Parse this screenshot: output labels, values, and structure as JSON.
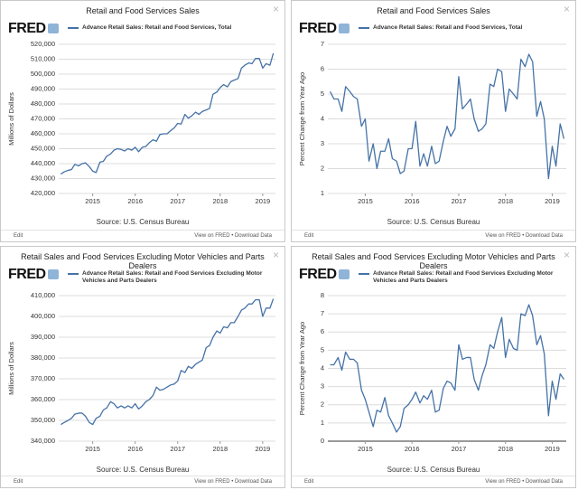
{
  "chart_data": [
    {
      "type": "line",
      "title": "Retail and Food Services Sales",
      "brand": "FRED",
      "close": "×",
      "x": [
        2014.25,
        2014.33,
        2014.42,
        2014.5,
        2014.58,
        2014.67,
        2014.75,
        2014.83,
        2014.92,
        2015.0,
        2015.08,
        2015.17,
        2015.25,
        2015.33,
        2015.42,
        2015.5,
        2015.58,
        2015.67,
        2015.75,
        2015.83,
        2015.92,
        2016.0,
        2016.08,
        2016.17,
        2016.25,
        2016.33,
        2016.42,
        2016.5,
        2016.58,
        2016.67,
        2016.75,
        2016.83,
        2016.92,
        2017.0,
        2017.08,
        2017.17,
        2017.25,
        2017.33,
        2017.42,
        2017.5,
        2017.58,
        2017.67,
        2017.75,
        2017.83,
        2017.92,
        2018.0,
        2018.08,
        2018.17,
        2018.25,
        2018.33,
        2018.42,
        2018.5,
        2018.58,
        2018.67,
        2018.75,
        2018.83,
        2018.92,
        2019.0,
        2019.08,
        2019.17,
        2019.25
      ],
      "series": [
        {
          "name": "Advance Retail Sales: Retail and Food Services, Total",
          "color": "#4572a7",
          "values": [
            433000,
            434500,
            435500,
            436000,
            439500,
            438500,
            440000,
            440500,
            438000,
            435000,
            434000,
            441000,
            441500,
            445000,
            446500,
            449000,
            450000,
            449500,
            448500,
            450000,
            449000,
            451000,
            448000,
            451000,
            451500,
            454000,
            456000,
            455000,
            459500,
            460000,
            460000,
            462000,
            464000,
            467000,
            466500,
            473000,
            470500,
            472000,
            474500,
            473000,
            475000,
            476000,
            477000,
            486500,
            488000,
            491000,
            493000,
            491500,
            495000,
            496000,
            497000,
            504000,
            506000,
            507500,
            507000,
            510500,
            510500,
            504000,
            507000,
            506000,
            514000
          ]
        }
      ],
      "xlim": [
        2014.2,
        2019.3
      ],
      "xticks": [
        2015,
        2016,
        2017,
        2018,
        2019
      ],
      "ylim": [
        420000,
        520000
      ],
      "yticks": [
        {
          "value": 420000,
          "label": "420,000"
        },
        {
          "value": 430000,
          "label": "430,000"
        },
        {
          "value": 440000,
          "label": "440,000"
        },
        {
          "value": 450000,
          "label": "450,000"
        },
        {
          "value": 460000,
          "label": "460,000"
        },
        {
          "value": 470000,
          "label": "470,000"
        },
        {
          "value": 480000,
          "label": "480,000"
        },
        {
          "value": 490000,
          "label": "490,000"
        },
        {
          "value": 500000,
          "label": "500,000"
        },
        {
          "value": 510000,
          "label": "510,000"
        },
        {
          "value": 520000,
          "label": "520,000"
        }
      ],
      "ylabel": "Millions of Dollars",
      "grid": true,
      "source": "Source: U.S. Census Bureau",
      "edit": "Edit",
      "links": "View on FRED • Download Data"
    },
    {
      "type": "line",
      "title": "Retail and Food Services Sales",
      "brand": "FRED",
      "close": "×",
      "x": [
        2014.25,
        2014.33,
        2014.42,
        2014.5,
        2014.58,
        2014.67,
        2014.75,
        2014.83,
        2014.92,
        2015.0,
        2015.08,
        2015.17,
        2015.25,
        2015.33,
        2015.42,
        2015.5,
        2015.58,
        2015.67,
        2015.75,
        2015.83,
        2015.92,
        2016.0,
        2016.08,
        2016.17,
        2016.25,
        2016.33,
        2016.42,
        2016.5,
        2016.58,
        2016.67,
        2016.75,
        2016.83,
        2016.92,
        2017.0,
        2017.08,
        2017.17,
        2017.25,
        2017.33,
        2017.42,
        2017.5,
        2017.58,
        2017.67,
        2017.75,
        2017.83,
        2017.92,
        2018.0,
        2018.08,
        2018.17,
        2018.25,
        2018.33,
        2018.42,
        2018.5,
        2018.58,
        2018.67,
        2018.75,
        2018.83,
        2018.92,
        2019.0,
        2019.08,
        2019.17,
        2019.25
      ],
      "series": [
        {
          "name": "Advance Retail Sales: Retail and Food Services, Total",
          "color": "#4572a7",
          "values": [
            5.1,
            4.8,
            4.8,
            4.3,
            5.3,
            5.1,
            4.9,
            4.8,
            3.7,
            4.0,
            2.3,
            3.0,
            2.0,
            2.7,
            2.7,
            3.2,
            2.4,
            2.3,
            1.8,
            1.9,
            2.8,
            2.8,
            3.9,
            2.1,
            2.6,
            2.1,
            2.9,
            2.2,
            2.3,
            3.1,
            3.7,
            3.3,
            3.6,
            5.7,
            4.4,
            4.6,
            4.8,
            4.0,
            3.5,
            3.6,
            3.8,
            5.4,
            5.3,
            6.0,
            5.9,
            4.3,
            5.2,
            5.0,
            4.8,
            6.4,
            6.1,
            6.6,
            6.3,
            4.1,
            4.7,
            4.0,
            1.6,
            2.9,
            2.1,
            3.8,
            3.2
          ]
        }
      ],
      "xlim": [
        2014.2,
        2019.3
      ],
      "xticks": [
        2015,
        2016,
        2017,
        2018,
        2019
      ],
      "ylim": [
        1,
        7
      ],
      "yticks": [
        1,
        2,
        3,
        4,
        5,
        6,
        7
      ],
      "ylabel": "Percent Change from Year Ago",
      "grid": true,
      "source": "Source: U.S. Census Bureau",
      "edit": "Edit",
      "links": "View on FRED • Download Data"
    },
    {
      "type": "line",
      "title": "Retail Sales and Food Services Excluding Motor Vehicles and Parts Dealers",
      "brand": "FRED",
      "close": "×",
      "x": [
        2014.25,
        2014.33,
        2014.42,
        2014.5,
        2014.58,
        2014.67,
        2014.75,
        2014.83,
        2014.92,
        2015.0,
        2015.08,
        2015.17,
        2015.25,
        2015.33,
        2015.42,
        2015.5,
        2015.58,
        2015.67,
        2015.75,
        2015.83,
        2015.92,
        2016.0,
        2016.08,
        2016.17,
        2016.25,
        2016.33,
        2016.42,
        2016.5,
        2016.58,
        2016.67,
        2016.75,
        2016.83,
        2016.92,
        2017.0,
        2017.08,
        2017.17,
        2017.25,
        2017.33,
        2017.42,
        2017.5,
        2017.58,
        2017.67,
        2017.75,
        2017.83,
        2017.92,
        2018.0,
        2018.08,
        2018.17,
        2018.25,
        2018.33,
        2018.42,
        2018.5,
        2018.58,
        2018.67,
        2018.75,
        2018.83,
        2018.92,
        2019.0,
        2019.08,
        2019.17,
        2019.25
      ],
      "series": [
        {
          "name": "Advance Retail Sales: Retail and Food Services Excluding Motor Vehicles and Parts Dealers",
          "color": "#4572a7",
          "values": [
            348000,
            349000,
            350000,
            351000,
            353000,
            353500,
            353500,
            352000,
            349000,
            348000,
            351000,
            352000,
            355000,
            356000,
            359000,
            358000,
            356000,
            357000,
            356000,
            357000,
            356000,
            358000,
            355500,
            357000,
            359000,
            360000,
            362000,
            366000,
            364500,
            365000,
            366000,
            367000,
            367500,
            369000,
            374000,
            373000,
            376000,
            375000,
            377000,
            378000,
            379000,
            385000,
            386000,
            390000,
            393000,
            392000,
            395000,
            394500,
            397000,
            397000,
            400000,
            403000,
            404000,
            406000,
            406000,
            408000,
            408000,
            400000,
            404000,
            404000,
            408500
          ]
        }
      ],
      "xlim": [
        2014.2,
        2019.3
      ],
      "xticks": [
        2015,
        2016,
        2017,
        2018,
        2019
      ],
      "ylim": [
        340000,
        410000
      ],
      "yticks": [
        {
          "value": 340000,
          "label": "340,000"
        },
        {
          "value": 350000,
          "label": "350,000"
        },
        {
          "value": 360000,
          "label": "360,000"
        },
        {
          "value": 370000,
          "label": "370,000"
        },
        {
          "value": 380000,
          "label": "380,000"
        },
        {
          "value": 390000,
          "label": "390,000"
        },
        {
          "value": 400000,
          "label": "400,000"
        },
        {
          "value": 410000,
          "label": "410,000"
        }
      ],
      "ylabel": "Millions of Dollars",
      "grid": true,
      "source": "Source: U.S. Census Bureau",
      "edit": "Edit",
      "links": "View on FRED • Download Data"
    },
    {
      "type": "line",
      "title": "Retail Sales and Food Services Excluding Motor Vehicles and Parts Dealers",
      "brand": "FRED",
      "close": "×",
      "x": [
        2014.25,
        2014.33,
        2014.42,
        2014.5,
        2014.58,
        2014.67,
        2014.75,
        2014.83,
        2014.92,
        2015.0,
        2015.08,
        2015.17,
        2015.25,
        2015.33,
        2015.42,
        2015.5,
        2015.58,
        2015.67,
        2015.75,
        2015.83,
        2015.92,
        2016.0,
        2016.08,
        2016.17,
        2016.25,
        2016.33,
        2016.42,
        2016.5,
        2016.58,
        2016.67,
        2016.75,
        2016.83,
        2016.92,
        2017.0,
        2017.08,
        2017.17,
        2017.25,
        2017.33,
        2017.42,
        2017.5,
        2017.58,
        2017.67,
        2017.75,
        2017.83,
        2017.92,
        2018.0,
        2018.08,
        2018.17,
        2018.25,
        2018.33,
        2018.42,
        2018.5,
        2018.58,
        2018.67,
        2018.75,
        2018.83,
        2018.92,
        2019.0,
        2019.08,
        2019.17,
        2019.25
      ],
      "series": [
        {
          "name": "Advance Retail Sales: Retail and Food Services Excluding Motor Vehicles and Parts Dealers",
          "color": "#4572a7",
          "values": [
            4.2,
            4.2,
            4.6,
            3.9,
            4.9,
            4.5,
            4.5,
            4.3,
            2.8,
            2.3,
            1.6,
            0.8,
            1.7,
            1.6,
            2.4,
            1.4,
            1.0,
            0.5,
            0.8,
            1.8,
            2.0,
            2.3,
            2.7,
            2.1,
            2.5,
            2.3,
            2.8,
            1.6,
            1.7,
            2.9,
            3.3,
            3.2,
            2.8,
            5.3,
            4.5,
            4.6,
            4.6,
            3.4,
            2.8,
            3.6,
            4.2,
            5.3,
            5.1,
            6.0,
            6.8,
            4.6,
            5.6,
            5.1,
            5.0,
            7.0,
            6.9,
            7.5,
            6.9,
            5.3,
            5.8,
            4.8,
            1.4,
            3.3,
            2.3,
            3.7,
            3.4
          ]
        }
      ],
      "xlim": [
        2014.2,
        2019.3
      ],
      "xticks": [
        2015,
        2016,
        2017,
        2018,
        2019
      ],
      "ylim": [
        0,
        8
      ],
      "yticks": [
        0,
        1,
        2,
        3,
        4,
        5,
        6,
        7,
        8
      ],
      "ylabel": "Percent Change from Year Ago",
      "grid": true,
      "source": "Source: U.S. Census Bureau",
      "edit": "Edit",
      "links": "View on FRED • Download Data"
    }
  ]
}
